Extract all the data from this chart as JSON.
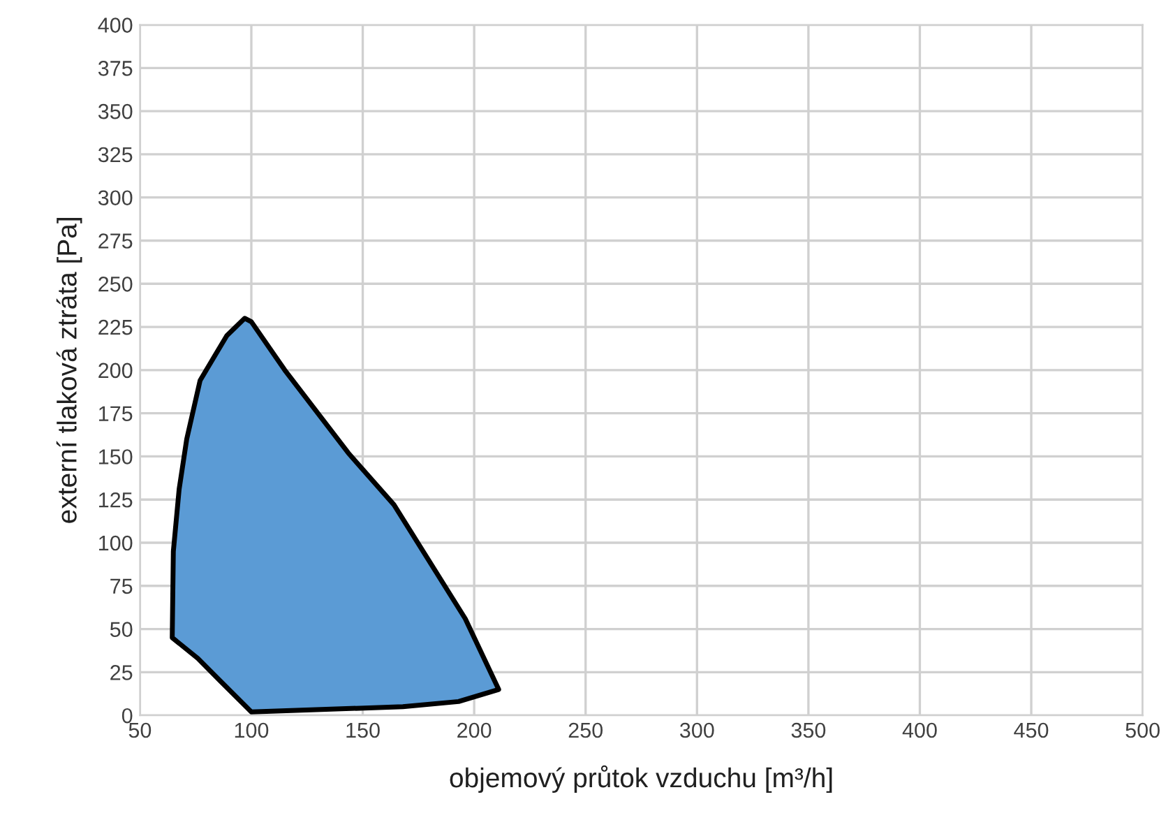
{
  "chart_data": {
    "type": "area",
    "xlabel": "objemový průtok vzduchu [m³/h]",
    "ylabel": "externí tlaková ztráta [Pa]",
    "series": [
      {
        "color": "#5b9bd5",
        "x": [
          100,
          168,
          193,
          211,
          196,
          164,
          143.5,
          115,
          100,
          97,
          89,
          77,
          71,
          67.6,
          65,
          64.5,
          76,
          86,
          100
        ],
        "values": [
          2,
          5,
          8,
          15,
          56,
          122,
          152,
          200,
          228,
          230,
          220,
          194,
          160,
          131,
          95,
          45,
          33,
          20,
          2
        ]
      }
    ],
    "xlim": [
      50,
      500
    ],
    "xticks": [
      50,
      100,
      150,
      200,
      250,
      300,
      350,
      400,
      450,
      500
    ],
    "ylim": [
      0,
      400
    ],
    "yticks": [
      0,
      25,
      50,
      75,
      100,
      125,
      150,
      175,
      200,
      225,
      250,
      275,
      300,
      325,
      350,
      375,
      400
    ],
    "grid": true
  }
}
